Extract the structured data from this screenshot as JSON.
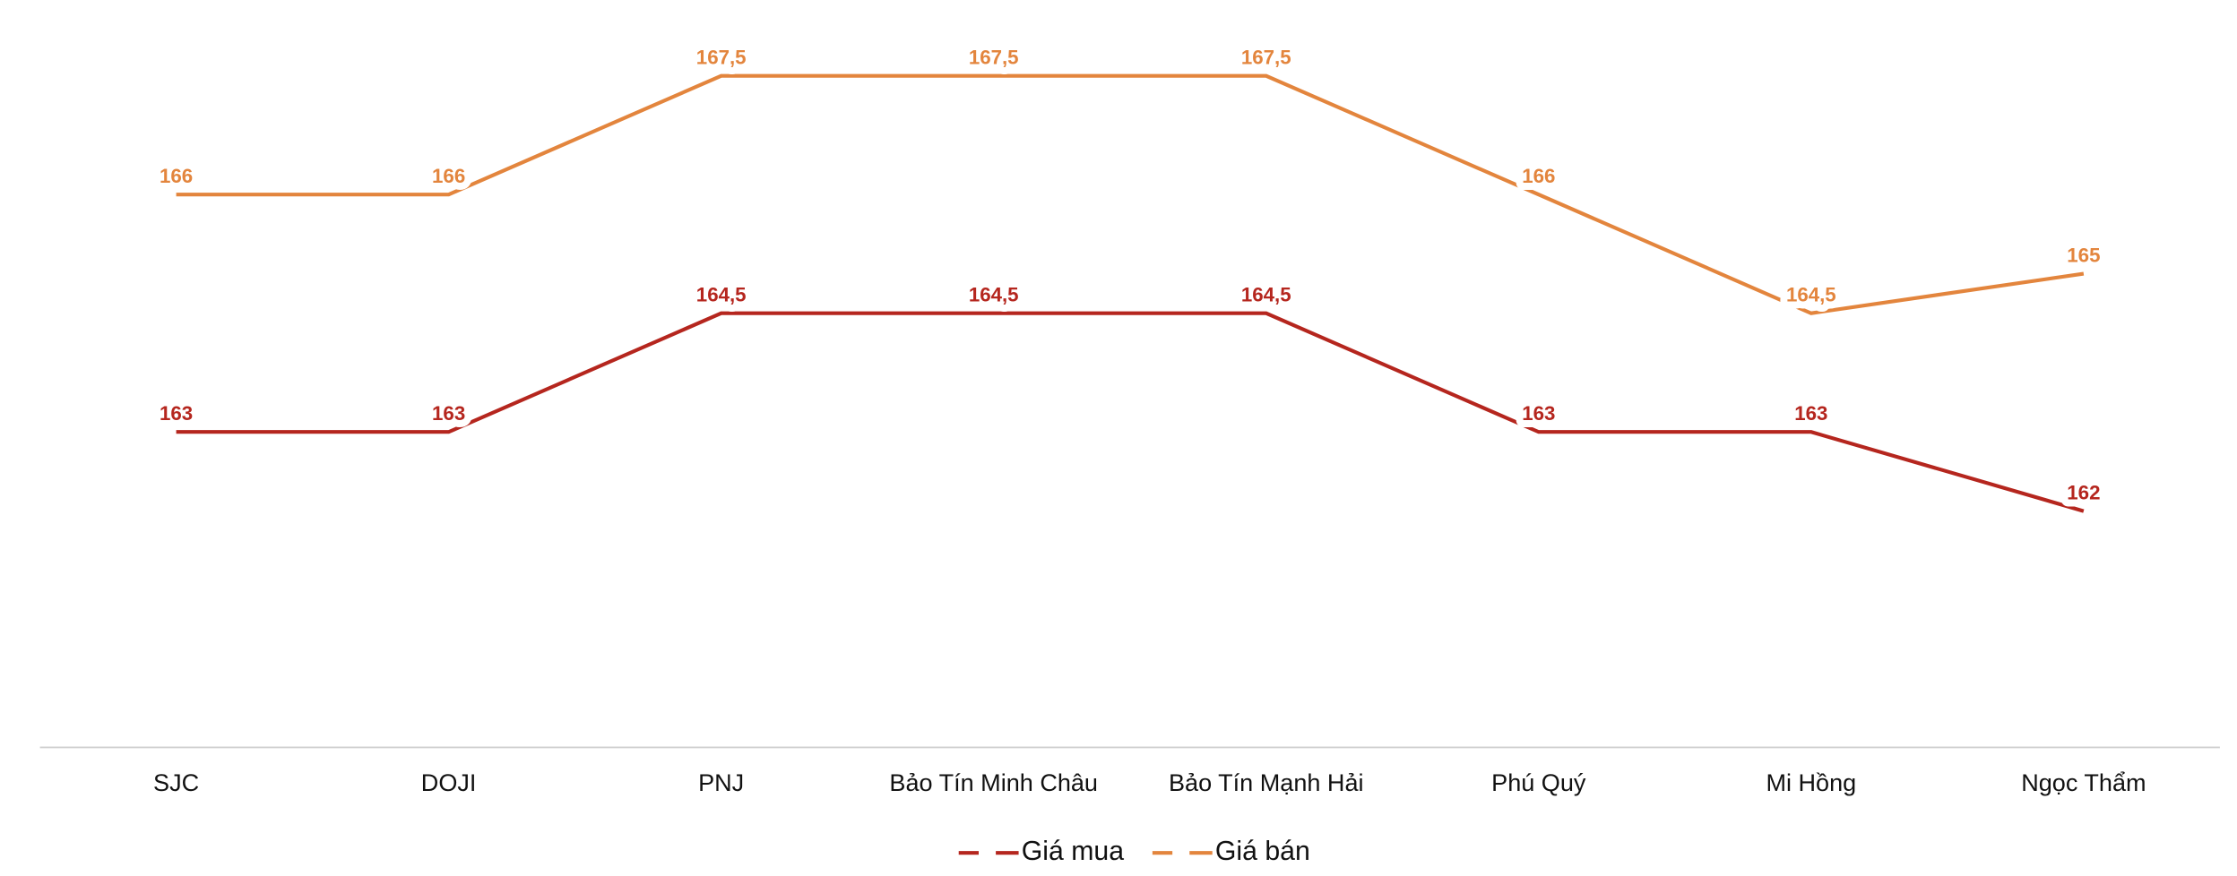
{
  "chart_data": {
    "type": "line",
    "categories": [
      "SJC",
      "DOJI",
      "PNJ",
      "Bảo Tín Minh Châu",
      "Bảo Tín Mạnh Hải",
      "Phú Quý",
      "Mi Hồng",
      "Ngọc Thẩm"
    ],
    "series": [
      {
        "name": "Giá mua",
        "color": "#b5261e",
        "values": [
          163,
          163,
          164.5,
          164.5,
          164.5,
          163,
          163,
          162
        ],
        "value_labels": [
          "163",
          "163",
          "164,5",
          "164,5",
          "164,5",
          "163",
          "163",
          "162"
        ]
      },
      {
        "name": "Giá bán",
        "color": "#e3853d",
        "values": [
          166,
          166,
          167.5,
          167.5,
          167.5,
          166,
          164.5,
          165
        ],
        "value_labels": [
          "166",
          "166",
          "167,5",
          "167,5",
          "167,5",
          "166",
          "164,5",
          "165"
        ]
      }
    ]
  }
}
